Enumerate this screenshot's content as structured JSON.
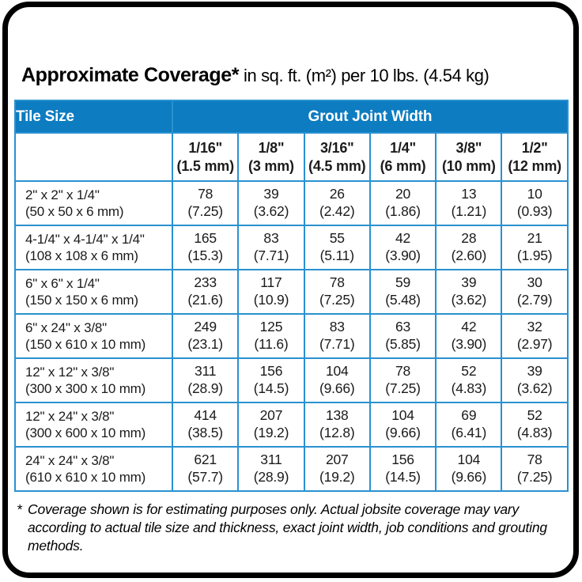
{
  "title": {
    "bold": "Approximate Coverage*",
    "rest": "in sq. ft. (m²) per 10 lbs. (4.54 kg)"
  },
  "table": {
    "header": {
      "tile_size": "Tile Size",
      "grout_joint_width": "Grout Joint Width"
    },
    "columns": [
      {
        "inch": "1/16\"",
        "metric": "(1.5 mm)"
      },
      {
        "inch": "1/8\"",
        "metric": "(3 mm)"
      },
      {
        "inch": "3/16\"",
        "metric": "(4.5 mm)"
      },
      {
        "inch": "1/4\"",
        "metric": "(6 mm)"
      },
      {
        "inch": "3/8\"",
        "metric": "(10 mm)"
      },
      {
        "inch": "1/2\"",
        "metric": "(12 mm)"
      }
    ],
    "rows": [
      {
        "size_in": "2\" x 2\" x 1/4\"",
        "size_mm": "(50 x 50 x 6 mm)",
        "values": [
          {
            "v": "78",
            "m": "(7.25)"
          },
          {
            "v": "39",
            "m": "(3.62)"
          },
          {
            "v": "26",
            "m": "(2.42)"
          },
          {
            "v": "20",
            "m": "(1.86)"
          },
          {
            "v": "13",
            "m": "(1.21)"
          },
          {
            "v": "10",
            "m": "(0.93)"
          }
        ]
      },
      {
        "size_in": "4-1/4\" x 4-1/4\" x 1/4\"",
        "size_mm": "(108 x 108 x 6 mm)",
        "values": [
          {
            "v": "165",
            "m": "(15.3)"
          },
          {
            "v": "83",
            "m": "(7.71)"
          },
          {
            "v": "55",
            "m": "(5.11)"
          },
          {
            "v": "42",
            "m": "(3.90)"
          },
          {
            "v": "28",
            "m": "(2.60)"
          },
          {
            "v": "21",
            "m": "(1.95)"
          }
        ]
      },
      {
        "size_in": "6\" x 6\" x 1/4\"",
        "size_mm": "(150 x 150 x 6 mm)",
        "values": [
          {
            "v": "233",
            "m": "(21.6)"
          },
          {
            "v": "117",
            "m": "(10.9)"
          },
          {
            "v": "78",
            "m": "(7.25)"
          },
          {
            "v": "59",
            "m": "(5.48)"
          },
          {
            "v": "39",
            "m": "(3.62)"
          },
          {
            "v": "30",
            "m": "(2.79)"
          }
        ]
      },
      {
        "size_in": "6\" x 24\" x 3/8\"",
        "size_mm": "(150 x 610 x 10 mm)",
        "values": [
          {
            "v": "249",
            "m": "(23.1)"
          },
          {
            "v": "125",
            "m": "(11.6)"
          },
          {
            "v": "83",
            "m": "(7.71)"
          },
          {
            "v": "63",
            "m": "(5.85)"
          },
          {
            "v": "42",
            "m": "(3.90)"
          },
          {
            "v": "32",
            "m": "(2.97)"
          }
        ]
      },
      {
        "size_in": "12\" x 12\" x 3/8\"",
        "size_mm": "(300 x 300 x 10 mm)",
        "values": [
          {
            "v": "311",
            "m": "(28.9)"
          },
          {
            "v": "156",
            "m": "(14.5)"
          },
          {
            "v": "104",
            "m": "(9.66)"
          },
          {
            "v": "78",
            "m": "(7.25)"
          },
          {
            "v": "52",
            "m": "(4.83)"
          },
          {
            "v": "39",
            "m": "(3.62)"
          }
        ]
      },
      {
        "size_in": "12\" x 24\" x 3/8\"",
        "size_mm": "(300 x 600 x 10 mm)",
        "values": [
          {
            "v": "414",
            "m": "(38.5)"
          },
          {
            "v": "207",
            "m": "(19.2)"
          },
          {
            "v": "138",
            "m": "(12.8)"
          },
          {
            "v": "104",
            "m": "(9.66)"
          },
          {
            "v": "69",
            "m": "(6.41)"
          },
          {
            "v": "52",
            "m": "(4.83)"
          }
        ]
      },
      {
        "size_in": "24\" x 24\" x 3/8\"",
        "size_mm": "(610 x 610 x 10 mm)",
        "values": [
          {
            "v": "621",
            "m": "(57.7)"
          },
          {
            "v": "311",
            "m": "(28.9)"
          },
          {
            "v": "207",
            "m": "(19.2)"
          },
          {
            "v": "156",
            "m": "(14.5)"
          },
          {
            "v": "104",
            "m": "(9.66)"
          },
          {
            "v": "78",
            "m": "(7.25)"
          }
        ]
      }
    ]
  },
  "footnote": {
    "marker": "*",
    "text": "Coverage shown is for estimating purposes only. Actual jobsite coverage may vary according to actual tile size and thickness, exact joint width, job conditions and grouting methods."
  },
  "colors": {
    "header_blue": "#0d7cc1",
    "grid_blue": "#2a91d0",
    "frame_black": "#000000",
    "text_black": "#1c1a1b",
    "header_text": "#ffffff"
  }
}
